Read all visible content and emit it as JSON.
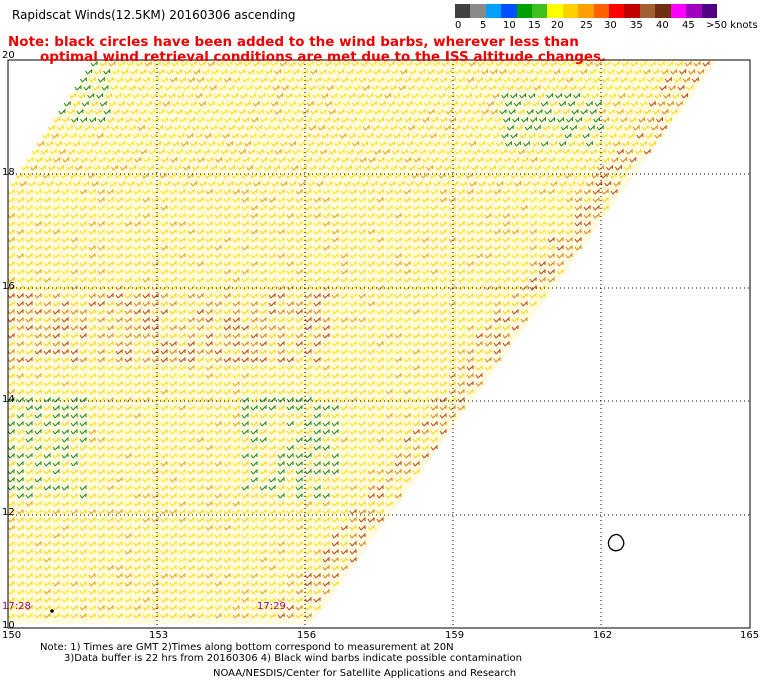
{
  "title": "Rapidscat Winds(12.5KM) 20160306 ascending",
  "note": {
    "line1": "Note: black circles have been added to the wind barbs, wherever less than",
    "line2": "optimal wind retrieval conditions are met due to the ISS altitude changes."
  },
  "legend": {
    "labels": [
      "0",
      "5",
      "10",
      "15",
      "20",
      "25",
      "30",
      "35",
      "40",
      "45",
      ">50 knots"
    ],
    "colors": [
      "#404040",
      "#8a8a8a",
      "#00a0ff",
      "#0050ff",
      "#00a000",
      "#40c020",
      "#ffff00",
      "#ffd000",
      "#ffa000",
      "#ff6000",
      "#ff0000",
      "#c00000",
      "#a06030",
      "#703010",
      "#ff00ff",
      "#a000c0",
      "#500080"
    ]
  },
  "axes": {
    "lon_labels": [
      "150",
      "153",
      "156",
      "159",
      "162",
      "165"
    ],
    "lat_labels": [
      "20",
      "18",
      "16",
      "14",
      "12",
      "10"
    ]
  },
  "time_labels": [
    "17:28",
    "17:29"
  ],
  "footer": {
    "line1": "Note: 1) Times are GMT 2)Times along bottom correspond to measurement at 20N",
    "line2": "3)Data buffer is 22 hrs from 20160306 4) Black wind barbs indicate possible contamination",
    "line3": "NOAA/NESDIS/Center for Satellite Applications and Research"
  }
}
